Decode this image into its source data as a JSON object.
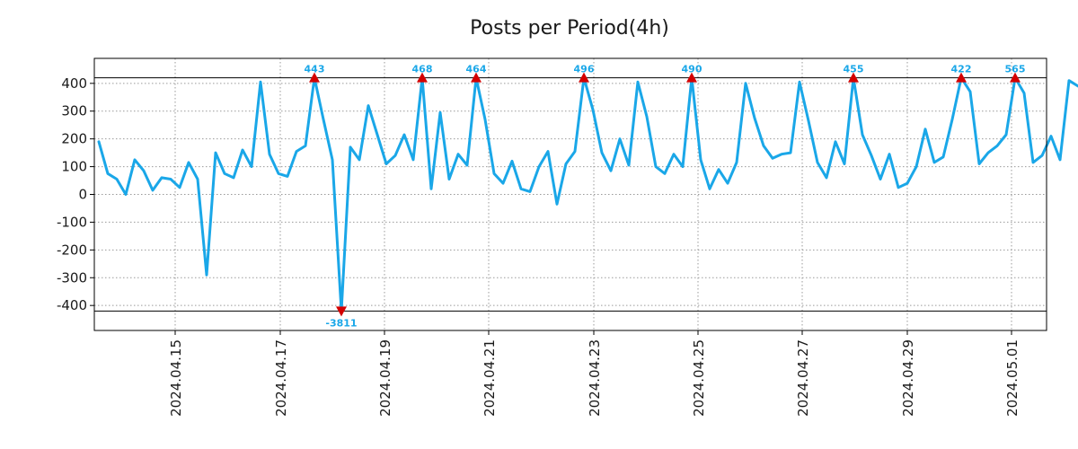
{
  "chart_data": {
    "type": "line",
    "title": "Posts per Period(4h)",
    "xlabel": "",
    "ylabel": "",
    "xlim": [
      -0.5,
      105.5
    ],
    "ylim": [
      -490,
      490
    ],
    "clip_limits": [
      -420,
      420
    ],
    "grid": true,
    "y_ticks": [
      400,
      300,
      200,
      100,
      0,
      -100,
      -200,
      -300,
      -400
    ],
    "y_tick_labels": [
      "400",
      "300",
      "200",
      "100",
      "0",
      "-100",
      "-200",
      "-300",
      "-400"
    ],
    "x_ticks": [
      {
        "pos": 8.5,
        "label": "2024.04.15"
      },
      {
        "pos": 20.2,
        "label": "2024.04.17"
      },
      {
        "pos": 31.8,
        "label": "2024.04.19"
      },
      {
        "pos": 43.4,
        "label": "2024.04.21"
      },
      {
        "pos": 55.1,
        "label": "2024.04.23"
      },
      {
        "pos": 66.7,
        "label": "2024.04.25"
      },
      {
        "pos": 78.3,
        "label": "2024.04.27"
      },
      {
        "pos": 90.0,
        "label": "2024.04.29"
      },
      {
        "pos": 101.6,
        "label": "2024.05.01"
      }
    ],
    "series": [
      {
        "name": "posts",
        "color": "#1aa7e8",
        "values": [
          190,
          75,
          55,
          0,
          125,
          85,
          15,
          60,
          55,
          25,
          115,
          55,
          -290,
          150,
          75,
          60,
          160,
          100,
          405,
          145,
          75,
          65,
          155,
          175,
          420,
          270,
          125,
          -420,
          170,
          125,
          320,
          215,
          110,
          140,
          215,
          125,
          420,
          20,
          295,
          55,
          145,
          105,
          420,
          270,
          75,
          40,
          120,
          20,
          10,
          100,
          155,
          -35,
          110,
          155,
          420,
          305,
          150,
          85,
          200,
          105,
          405,
          280,
          100,
          75,
          145,
          100,
          420,
          125,
          20,
          90,
          40,
          115,
          400,
          275,
          175,
          130,
          145,
          150,
          405,
          265,
          115,
          60,
          190,
          110,
          420,
          215,
          140,
          55,
          145,
          25,
          40,
          100,
          235,
          115,
          135,
          270,
          420,
          370,
          110,
          150,
          175,
          215,
          420,
          365,
          115,
          140,
          210,
          125,
          410,
          390
        ]
      }
    ],
    "peaks": [
      {
        "index": 24,
        "label": "443",
        "direction": "up"
      },
      {
        "index": 27,
        "label": "-3811",
        "direction": "down"
      },
      {
        "index": 36,
        "label": "468",
        "direction": "up"
      },
      {
        "index": 42,
        "label": "464",
        "direction": "up"
      },
      {
        "index": 54,
        "label": "496",
        "direction": "up"
      },
      {
        "index": 66,
        "label": "490",
        "direction": "up"
      },
      {
        "index": 84,
        "label": "455",
        "direction": "up"
      },
      {
        "index": 96,
        "label": "422",
        "direction": "up"
      },
      {
        "index": 102,
        "label": "565",
        "direction": "up"
      }
    ],
    "colors": {
      "line": "#1aa7e8",
      "marker": "#d40000",
      "peak_label": "#1aa7e8",
      "grid": "#9a9a9a",
      "axes": "#000000"
    }
  }
}
